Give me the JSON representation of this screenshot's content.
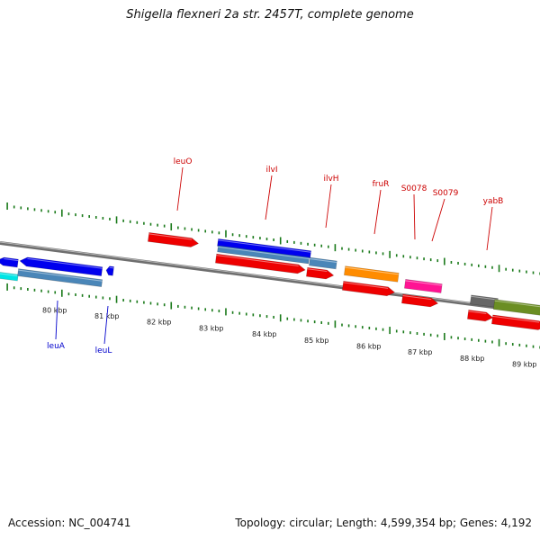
{
  "header": {
    "title": "Shigella flexneri 2a str. 2457T, complete genome"
  },
  "footer": {
    "accession": "Accession: NC_004741",
    "summary": "Topology: circular; Length: 4,599,354 bp; Genes: 4,192"
  },
  "colors": {
    "backbone": "#7a7a7a",
    "ticks": "#1a7a1a",
    "label_forward": "#cc0000",
    "label_reverse": "#0000cc"
  },
  "scale_labels": [
    "80 kbp",
    "81 kbp",
    "82 kbp",
    "83 kbp",
    "84 kbp",
    "85 kbp",
    "86 kbp",
    "87 kbp",
    "88 kbp",
    "89 kbp"
  ],
  "gene_labels": [
    {
      "text": "leuO",
      "color": "#cc0000"
    },
    {
      "text": "ilvI",
      "color": "#cc0000"
    },
    {
      "text": "ilvH",
      "color": "#cc0000"
    },
    {
      "text": "fruR",
      "color": "#cc0000"
    },
    {
      "text": "S0078",
      "color": "#cc0000"
    },
    {
      "text": "S0079",
      "color": "#cc0000"
    },
    {
      "text": "yabB",
      "color": "#cc0000"
    },
    {
      "text": "leuA",
      "color": "#0000cc"
    },
    {
      "text": "leuL",
      "color": "#0000cc"
    }
  ],
  "features": [
    {
      "name": "leuA-gene",
      "color": "#0000ee",
      "strand": "reverse"
    },
    {
      "name": "leuA-cds",
      "color": "#4a86b8",
      "strand": "reverse"
    },
    {
      "name": "leuA-left-gene",
      "color": "#0000ee",
      "strand": "reverse"
    },
    {
      "name": "leuL-gene",
      "color": "#0000ee",
      "strand": "reverse"
    },
    {
      "name": "left-misc",
      "color": "#00e5e5",
      "strand": "reverse"
    },
    {
      "name": "leuO-gene",
      "color": "#ee0000",
      "strand": "forward"
    },
    {
      "name": "ilvI-gene",
      "color": "#0000ee",
      "strand": "forward"
    },
    {
      "name": "ilvI-cds",
      "color": "#4a86b8",
      "strand": "forward"
    },
    {
      "name": "ilvH-cds",
      "color": "#4a86b8",
      "strand": "forward"
    },
    {
      "name": "ilvI-cds-red",
      "color": "#ee0000",
      "strand": "forward"
    },
    {
      "name": "ilvH-gene",
      "color": "#ee0000",
      "strand": "forward"
    },
    {
      "name": "fruR-rna",
      "color": "#ff8c00",
      "strand": "forward"
    },
    {
      "name": "fruR-gene",
      "color": "#ee0000",
      "strand": "forward"
    },
    {
      "name": "S0078-rna",
      "color": "#ff1493",
      "strand": "forward"
    },
    {
      "name": "S0078-gene",
      "color": "#ee0000",
      "strand": "forward"
    },
    {
      "name": "yabB-misc",
      "color": "#666666",
      "strand": "forward"
    },
    {
      "name": "yabB-other",
      "color": "#6b8e23",
      "strand": "forward"
    },
    {
      "name": "yabB-gene",
      "color": "#ee0000",
      "strand": "forward"
    },
    {
      "name": "yabB-gene-2",
      "color": "#ee0000",
      "strand": "forward"
    }
  ]
}
